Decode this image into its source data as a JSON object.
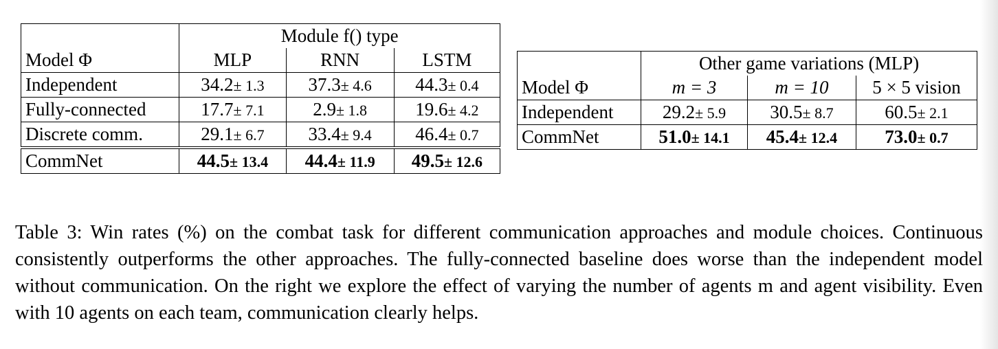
{
  "left_table": {
    "header_group": "Module f() type",
    "row_header": "Model Φ",
    "columns": [
      "MLP",
      "RNN",
      "LSTM"
    ],
    "rows": [
      {
        "model": "Independent",
        "cells": [
          {
            "mean": "34.2",
            "pm": "± 1.3"
          },
          {
            "mean": "37.3",
            "pm": "± 4.6"
          },
          {
            "mean": "44.3",
            "pm": "± 0.4"
          }
        ]
      },
      {
        "model": "Fully-connected",
        "cells": [
          {
            "mean": "17.7",
            "pm": "± 7.1"
          },
          {
            "mean": "2.9",
            "pm": "± 1.8"
          },
          {
            "mean": "19.6",
            "pm": "± 4.2"
          }
        ]
      },
      {
        "model": "Discrete comm.",
        "cells": [
          {
            "mean": "29.1",
            "pm": "± 6.7"
          },
          {
            "mean": "33.4",
            "pm": "± 9.4"
          },
          {
            "mean": "46.4",
            "pm": "± 0.7"
          }
        ]
      },
      {
        "model": "CommNet",
        "cells": [
          {
            "mean": "44.5",
            "pm": "± 13.4"
          },
          {
            "mean": "44.4",
            "pm": "± 11.9"
          },
          {
            "mean": "49.5",
            "pm": "± 12.6"
          }
        ]
      }
    ]
  },
  "right_table": {
    "header_group": "Other game variations (MLP)",
    "row_header": "Model Φ",
    "columns": [
      "m = 3",
      "m = 10",
      "5 × 5 vision"
    ],
    "rows": [
      {
        "model": "Independent",
        "cells": [
          {
            "mean": "29.2",
            "pm": "± 5.9"
          },
          {
            "mean": "30.5",
            "pm": "± 8.7"
          },
          {
            "mean": "60.5",
            "pm": "± 2.1"
          }
        ]
      },
      {
        "model": "CommNet",
        "cells": [
          {
            "mean": "51.0",
            "pm": "± 14.1"
          },
          {
            "mean": "45.4",
            "pm": "± 12.4"
          },
          {
            "mean": "73.0",
            "pm": "± 0.7"
          }
        ]
      }
    ]
  },
  "caption": "Table 3: Win rates (%) on the combat task for different communication approaches and module choices. Continuous consistently outperforms the other approaches. The fully-connected baseline does worse than the independent model without communication.  On the right we explore the effect of varying the number of agents m and agent visibility. Even with 10 agents on each team, communication clearly helps."
}
